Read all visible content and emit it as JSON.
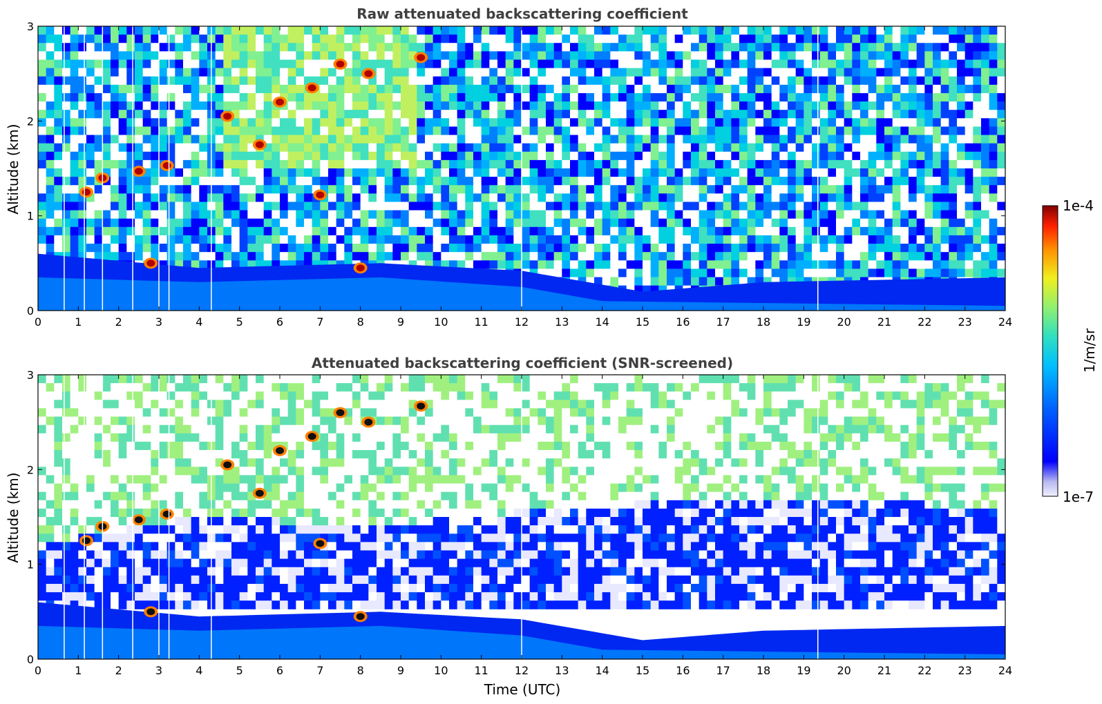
{
  "chart_data": [
    {
      "type": "heatmap",
      "title": "Raw attenuated backscattering coefficient",
      "xlabel": "",
      "ylabel": "Altitude (km)",
      "xlim": [
        0,
        24
      ],
      "ylim": [
        0,
        3
      ],
      "x_ticks": [
        "0",
        "1",
        "2",
        "3",
        "4",
        "5",
        "6",
        "7",
        "8",
        "9",
        "10",
        "11",
        "12",
        "13",
        "14",
        "15",
        "16",
        "17",
        "18",
        "19",
        "20",
        "21",
        "22",
        "23",
        "24"
      ],
      "y_ticks": [
        "0",
        "1",
        "2",
        "3"
      ],
      "boundary_layer_top_km": [
        {
          "x": 0,
          "y": 0.6
        },
        {
          "x": 4,
          "y": 0.45
        },
        {
          "x": 8.5,
          "y": 0.5
        },
        {
          "x": 12,
          "y": 0.42
        },
        {
          "x": 15,
          "y": 0.2
        },
        {
          "x": 18,
          "y": 0.3
        },
        {
          "x": 24,
          "y": 0.35
        }
      ],
      "high_backscatter_features": [
        {
          "time_utc": 1.2,
          "altitude_km": 1.25
        },
        {
          "time_utc": 1.6,
          "altitude_km": 1.4
        },
        {
          "time_utc": 2.5,
          "altitude_km": 1.47
        },
        {
          "time_utc": 3.2,
          "altitude_km": 1.53
        },
        {
          "time_utc": 4.7,
          "altitude_km": 2.05
        },
        {
          "time_utc": 5.5,
          "altitude_km": 1.75
        },
        {
          "time_utc": 6.0,
          "altitude_km": 2.2
        },
        {
          "time_utc": 6.8,
          "altitude_km": 2.35
        },
        {
          "time_utc": 7.0,
          "altitude_km": 1.22
        },
        {
          "time_utc": 7.5,
          "altitude_km": 2.6
        },
        {
          "time_utc": 8.2,
          "altitude_km": 2.5
        },
        {
          "time_utc": 9.5,
          "altitude_km": 2.67
        },
        {
          "time_utc": 8.0,
          "altitude_km": 0.45
        },
        {
          "time_utc": 2.8,
          "altitude_km": 0.5
        }
      ],
      "data_gaps_time_utc": [
        0.65,
        1.15,
        1.6,
        2.35,
        3.0,
        3.25,
        4.3,
        12.0,
        19.35
      ]
    },
    {
      "type": "heatmap",
      "title": "Attenuated backscattering coefficient (SNR-screened)",
      "xlabel": "Time (UTC)",
      "ylabel": "Altitude (km)",
      "xlim": [
        0,
        24
      ],
      "ylim": [
        0,
        3
      ],
      "x_ticks": [
        "0",
        "1",
        "2",
        "3",
        "4",
        "5",
        "6",
        "7",
        "8",
        "9",
        "10",
        "11",
        "12",
        "13",
        "14",
        "15",
        "16",
        "17",
        "18",
        "19",
        "20",
        "21",
        "22",
        "23",
        "24"
      ],
      "y_ticks": [
        "0",
        "1",
        "2",
        "3"
      ],
      "screened_region_top_km": [
        {
          "x": 0,
          "y": 1.2
        },
        {
          "x": 4,
          "y": 1.5
        },
        {
          "x": 8.5,
          "y": 1.4
        },
        {
          "x": 13,
          "y": 1.6
        },
        {
          "x": 18,
          "y": 1.7
        },
        {
          "x": 24,
          "y": 1.6
        }
      ],
      "data_gaps_time_utc": [
        0.65,
        1.15,
        1.6,
        2.35,
        3.0,
        3.25,
        4.3,
        12.0,
        19.35
      ]
    }
  ],
  "colorbar": {
    "label": "1/m/sr",
    "max_label": "1e-4",
    "min_label": "1e-7",
    "scale": "log",
    "range": [
      1e-07,
      0.0001
    ],
    "colormap": [
      "#f0f0ff",
      "#b8b8f0",
      "#0000ff",
      "#0060ff",
      "#00c0ff",
      "#30e0c0",
      "#90f070",
      "#f0f020",
      "#ff9000",
      "#ff2000",
      "#800000"
    ]
  }
}
